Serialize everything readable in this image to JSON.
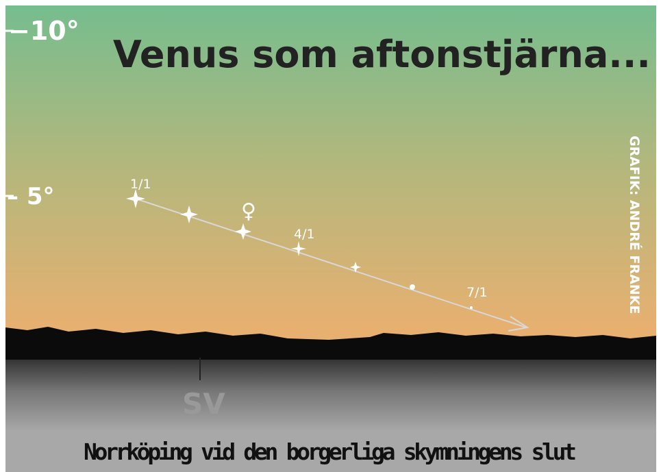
{
  "scale": {
    "top_label": "−10°",
    "mid_label": "– 5°"
  },
  "title": "Venus som aftonstjärna...",
  "dates": [
    "1/1",
    "4/1",
    "7/1"
  ],
  "planet_symbol": "♀",
  "credit": "GRAFIK: ANDRÉ FRANKE",
  "direction": "SV",
  "caption": "Norrköping vid den borgerliga skymningens slut"
}
